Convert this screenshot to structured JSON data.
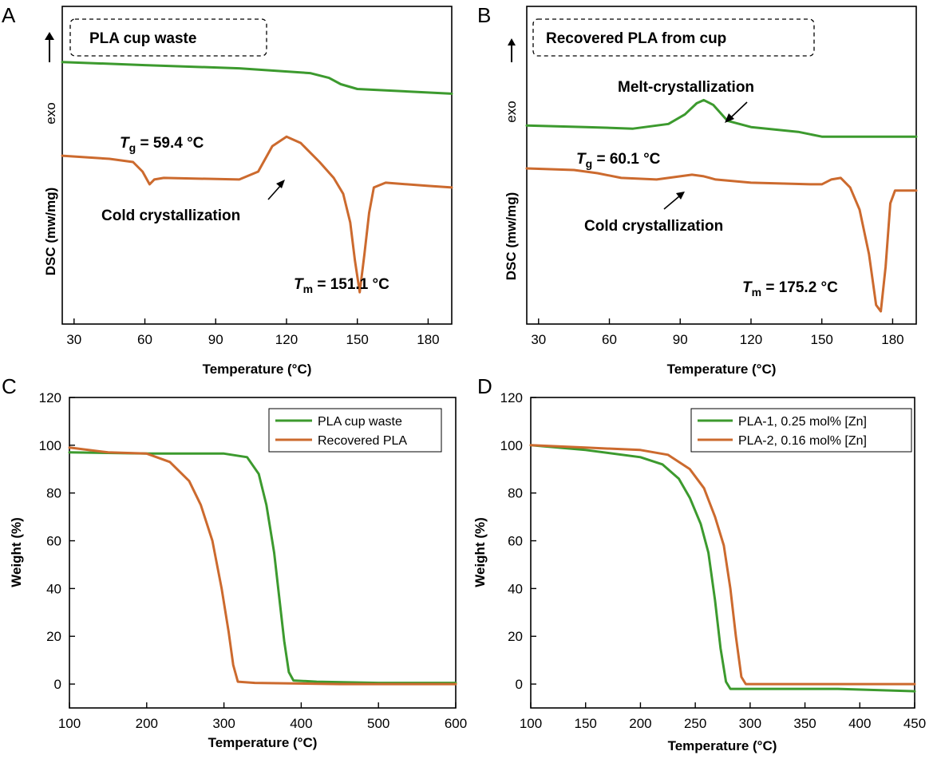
{
  "colors": {
    "green": "#3c9a2e",
    "orange": "#cc6a2e",
    "axis": "#000000"
  },
  "chart_data": [
    {
      "panel": "A",
      "type": "line",
      "box_label": "PLA cup waste",
      "exo_label": "exo",
      "arrow_icon": "up-arrow-icon",
      "xlabel": "Temperature (°C)",
      "ylabel": "DSC (mw/mg)",
      "xlim": [
        25,
        190
      ],
      "ylim": [
        0,
        1
      ],
      "xticks": [
        30,
        60,
        90,
        120,
        150,
        180
      ],
      "annotations": {
        "tg_symbol": "T",
        "tg_sub": "g",
        "tg_value": " = 59.4 °C",
        "tm_symbol": "T",
        "tm_sub": "m",
        "tm_value": " = 151.1 °C",
        "cold": "Cold crystallization"
      },
      "series": [
        {
          "color": "green",
          "points": [
            [
              25,
              0.825
            ],
            [
              60,
              0.815
            ],
            [
              100,
              0.805
            ],
            [
              130,
              0.79
            ],
            [
              138,
              0.775
            ],
            [
              143,
              0.755
            ],
            [
              150,
              0.74
            ],
            [
              190,
              0.725
            ]
          ]
        },
        {
          "color": "orange",
          "points": [
            [
              25,
              0.53
            ],
            [
              45,
              0.52
            ],
            [
              55,
              0.51
            ],
            [
              59,
              0.48
            ],
            [
              62,
              0.44
            ],
            [
              64,
              0.455
            ],
            [
              68,
              0.46
            ],
            [
              100,
              0.455
            ],
            [
              108,
              0.48
            ],
            [
              114,
              0.56
            ],
            [
              120,
              0.59
            ],
            [
              126,
              0.57
            ],
            [
              134,
              0.51
            ],
            [
              140,
              0.46
            ],
            [
              144,
              0.41
            ],
            [
              147,
              0.32
            ],
            [
              149,
              0.2
            ],
            [
              151,
              0.1
            ],
            [
              153,
              0.22
            ],
            [
              155,
              0.35
            ],
            [
              157,
              0.43
            ],
            [
              162,
              0.445
            ],
            [
              180,
              0.435
            ],
            [
              190,
              0.43
            ]
          ]
        }
      ]
    },
    {
      "panel": "B",
      "type": "line",
      "box_label": "Recovered PLA from cup",
      "exo_label": "exo",
      "arrow_icon": "up-arrow-icon",
      "xlabel": "Temperature (°C)",
      "ylabel": "DSC (mw/mg)",
      "xlim": [
        25,
        190
      ],
      "ylim": [
        0,
        1
      ],
      "xticks": [
        30,
        60,
        90,
        120,
        150,
        180
      ],
      "annotations": {
        "tg_symbol": "T",
        "tg_sub": "g",
        "tg_value": " = 60.1 °C",
        "tm_symbol": "T",
        "tm_sub": "m",
        "tm_value": " = 175.2 °C",
        "melt": "Melt-crystallization",
        "cold": "Cold crystallization"
      },
      "series": [
        {
          "color": "green",
          "points": [
            [
              25,
              0.625
            ],
            [
              50,
              0.62
            ],
            [
              70,
              0.615
            ],
            [
              85,
              0.63
            ],
            [
              92,
              0.66
            ],
            [
              97,
              0.695
            ],
            [
              100,
              0.705
            ],
            [
              104,
              0.69
            ],
            [
              110,
              0.64
            ],
            [
              120,
              0.62
            ],
            [
              140,
              0.605
            ],
            [
              150,
              0.59
            ],
            [
              160,
              0.59
            ],
            [
              190,
              0.59
            ]
          ]
        },
        {
          "color": "orange",
          "points": [
            [
              25,
              0.49
            ],
            [
              45,
              0.485
            ],
            [
              55,
              0.475
            ],
            [
              65,
              0.46
            ],
            [
              80,
              0.455
            ],
            [
              90,
              0.465
            ],
            [
              95,
              0.47
            ],
            [
              100,
              0.465
            ],
            [
              105,
              0.455
            ],
            [
              120,
              0.445
            ],
            [
              145,
              0.44
            ],
            [
              150,
              0.44
            ],
            [
              154,
              0.455
            ],
            [
              158,
              0.46
            ],
            [
              162,
              0.43
            ],
            [
              166,
              0.36
            ],
            [
              170,
              0.22
            ],
            [
              173,
              0.06
            ],
            [
              175,
              0.04
            ],
            [
              177,
              0.18
            ],
            [
              179,
              0.38
            ],
            [
              181,
              0.42
            ],
            [
              190,
              0.42
            ]
          ]
        }
      ]
    },
    {
      "panel": "C",
      "type": "line",
      "xlabel": "Temperature (°C)",
      "ylabel": "Weight (%)",
      "xlim": [
        100,
        600
      ],
      "ylim": [
        -10,
        120
      ],
      "xticks": [
        100,
        200,
        300,
        400,
        500,
        600
      ],
      "yticks": [
        0,
        20,
        40,
        60,
        80,
        100,
        120
      ],
      "legend_position": "top-right",
      "series": [
        {
          "name": "PLA cup waste",
          "color": "green",
          "points": [
            [
              100,
              97
            ],
            [
              200,
              96.5
            ],
            [
              300,
              96.5
            ],
            [
              330,
              95
            ],
            [
              345,
              88
            ],
            [
              355,
              75
            ],
            [
              365,
              55
            ],
            [
              372,
              35
            ],
            [
              378,
              18
            ],
            [
              384,
              5
            ],
            [
              390,
              1.5
            ],
            [
              420,
              1
            ],
            [
              500,
              0.5
            ],
            [
              600,
              0.5
            ]
          ]
        },
        {
          "name": "Recovered PLA",
          "color": "orange",
          "points": [
            [
              100,
              99
            ],
            [
              150,
              97
            ],
            [
              200,
              96.5
            ],
            [
              230,
              93
            ],
            [
              255,
              85
            ],
            [
              270,
              75
            ],
            [
              285,
              60
            ],
            [
              297,
              40
            ],
            [
              306,
              22
            ],
            [
              312,
              8
            ],
            [
              318,
              1
            ],
            [
              340,
              0.5
            ],
            [
              450,
              0
            ],
            [
              600,
              0
            ]
          ]
        }
      ]
    },
    {
      "panel": "D",
      "type": "line",
      "xlabel": "Temperature (°C)",
      "ylabel": "Weight (%)",
      "xlim": [
        100,
        450
      ],
      "ylim": [
        -10,
        120
      ],
      "xticks": [
        100,
        150,
        200,
        250,
        300,
        350,
        400,
        450
      ],
      "yticks": [
        0,
        20,
        40,
        60,
        80,
        100,
        120
      ],
      "legend_position": "top-right",
      "series": [
        {
          "name": "PLA-1, 0.25 mol% [Zn]",
          "color": "green",
          "points": [
            [
              100,
              100
            ],
            [
              150,
              98
            ],
            [
              200,
              95
            ],
            [
              220,
              92
            ],
            [
              235,
              86
            ],
            [
              245,
              78
            ],
            [
              255,
              67
            ],
            [
              262,
              55
            ],
            [
              268,
              35
            ],
            [
              273,
              15
            ],
            [
              278,
              1
            ],
            [
              282,
              -2
            ],
            [
              300,
              -2
            ],
            [
              380,
              -2
            ],
            [
              450,
              -3
            ]
          ]
        },
        {
          "name": "PLA-2, 0.16 mol% [Zn]",
          "color": "orange",
          "points": [
            [
              100,
              100
            ],
            [
              150,
              99
            ],
            [
              200,
              98
            ],
            [
              225,
              96
            ],
            [
              245,
              90
            ],
            [
              258,
              82
            ],
            [
              268,
              70
            ],
            [
              276,
              58
            ],
            [
              282,
              40
            ],
            [
              287,
              20
            ],
            [
              292,
              3
            ],
            [
              296,
              0
            ],
            [
              320,
              0
            ],
            [
              450,
              0
            ]
          ]
        }
      ]
    }
  ]
}
